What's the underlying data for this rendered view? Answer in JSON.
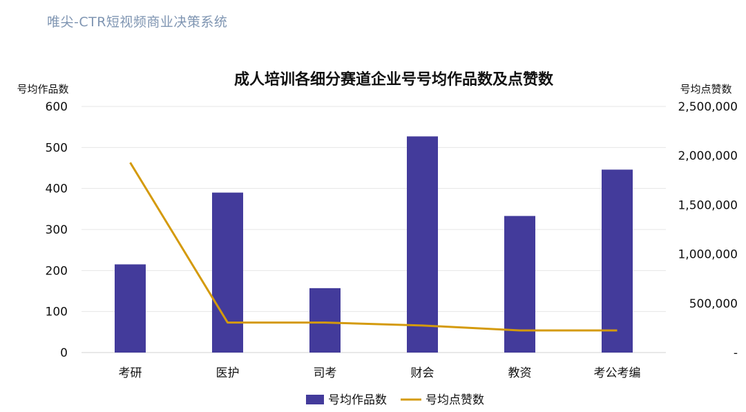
{
  "header": {
    "brand": "唯尖-CTR短视频商业决策系统"
  },
  "chart_data": {
    "type": "bar+line",
    "title": "成人培训各细分赛道企业号号均作品数及点赞数",
    "categories": [
      "考研",
      "医护",
      "司考",
      "财会",
      "教资",
      "考公考编"
    ],
    "series": [
      {
        "name": "号均作品数",
        "type": "bar",
        "axis": "left",
        "color": "#433b9b",
        "values": [
          215,
          390,
          157,
          527,
          333,
          446
        ]
      },
      {
        "name": "号均点赞数",
        "type": "line",
        "axis": "right",
        "color": "#d49a0c",
        "values": [
          1930000,
          305000,
          305000,
          275000,
          225000,
          225000
        ]
      }
    ],
    "y_left": {
      "label": "号均作品数",
      "min": 0,
      "max": 600,
      "ticks": [
        0,
        100,
        200,
        300,
        400,
        500,
        600
      ],
      "tick_labels": [
        "0",
        "100",
        "200",
        "300",
        "400",
        "500",
        "600"
      ]
    },
    "y_right": {
      "label": "号均点赞数",
      "min": 0,
      "max": 2500000,
      "ticks": [
        0,
        500000,
        1000000,
        1500000,
        2000000,
        2500000
      ],
      "tick_labels": [
        "-",
        "500,000",
        "1,000,000",
        "1,500,000",
        "2,000,000",
        "2,500,000"
      ]
    },
    "grid": true,
    "legend": "bottom"
  }
}
